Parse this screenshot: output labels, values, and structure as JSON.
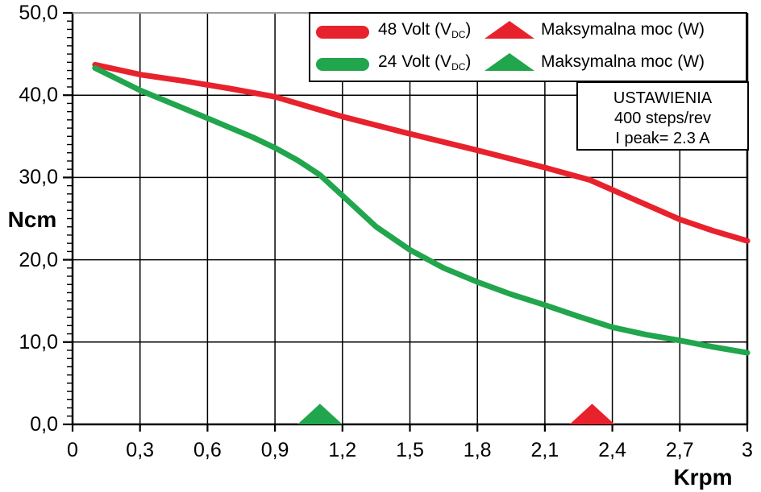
{
  "chart_data": {
    "type": "line",
    "title": "",
    "xlabel": "Krpm",
    "ylabel": "Ncm",
    "xlim": [
      0,
      3
    ],
    "ylim": [
      0,
      50
    ],
    "grid": true,
    "legend_position": "top",
    "x_ticks": [
      {
        "v": 0,
        "label": "0"
      },
      {
        "v": 0.3,
        "label": "0,3"
      },
      {
        "v": 0.6,
        "label": "0,6"
      },
      {
        "v": 0.9,
        "label": "0,9"
      },
      {
        "v": 1.2,
        "label": "1,2"
      },
      {
        "v": 1.5,
        "label": "1,5"
      },
      {
        "v": 1.8,
        "label": "1,8"
      },
      {
        "v": 2.1,
        "label": "2,1"
      },
      {
        "v": 2.4,
        "label": "2,4"
      },
      {
        "v": 2.7,
        "label": "2,7"
      },
      {
        "v": 3,
        "label": "3"
      }
    ],
    "y_ticks": [
      {
        "v": 0,
        "label": "0,0"
      },
      {
        "v": 10,
        "label": "10,0"
      },
      {
        "v": 20,
        "label": "20,0"
      },
      {
        "v": 30,
        "label": "30,0"
      },
      {
        "v": 40,
        "label": "40,0"
      },
      {
        "v": 50,
        "label": "50,0"
      }
    ],
    "y_minor_step": 1,
    "series": [
      {
        "name": "48 Volt (VDC)",
        "color": "#e8222d",
        "points": [
          [
            0.1,
            43.7
          ],
          [
            0.3,
            42.5
          ],
          [
            0.5,
            41.7
          ],
          [
            0.7,
            40.8
          ],
          [
            0.9,
            39.8
          ],
          [
            1.2,
            37.4
          ],
          [
            1.5,
            35.3
          ],
          [
            1.8,
            33.3
          ],
          [
            2.1,
            31.2
          ],
          [
            2.3,
            29.7
          ],
          [
            2.45,
            27.9
          ],
          [
            2.7,
            24.9
          ],
          [
            2.85,
            23.5
          ],
          [
            3.0,
            22.3
          ]
        ]
      },
      {
        "name": "24 Volt (VDC)",
        "color": "#21a54d",
        "points": [
          [
            0.1,
            43.3
          ],
          [
            0.3,
            40.6
          ],
          [
            0.6,
            37.2
          ],
          [
            0.8,
            34.9
          ],
          [
            0.9,
            33.6
          ],
          [
            1.0,
            32.1
          ],
          [
            1.1,
            30.3
          ],
          [
            1.2,
            27.8
          ],
          [
            1.35,
            24.0
          ],
          [
            1.5,
            21.2
          ],
          [
            1.65,
            19.0
          ],
          [
            1.8,
            17.3
          ],
          [
            1.95,
            15.8
          ],
          [
            2.1,
            14.5
          ],
          [
            2.25,
            13.1
          ],
          [
            2.4,
            11.8
          ],
          [
            2.55,
            10.9
          ],
          [
            2.7,
            10.2
          ],
          [
            2.85,
            9.4
          ],
          [
            3.0,
            8.7
          ]
        ]
      }
    ],
    "markers": [
      {
        "name": "max-power-48v",
        "label": "Maksymalna moc (W)",
        "color": "#e8222d",
        "x": 2.31,
        "apex_ncm": 2.5,
        "half_width_krpm": 0.1
      },
      {
        "name": "max-power-24v",
        "label": "Maksymalna moc (W)",
        "color": "#21a54d",
        "x": 1.1,
        "apex_ncm": 2.5,
        "half_width_krpm": 0.1
      }
    ]
  },
  "legend": {
    "rows": [
      {
        "volt_main": "48 Volt (V",
        "volt_sub": "DC",
        "volt_close": ")",
        "marker_label": "Maksymalna moc (W)",
        "color": "#e8222d"
      },
      {
        "volt_main": "24 Volt (V",
        "volt_sub": "DC",
        "volt_close": ")",
        "marker_label": "Maksymalna moc (W)",
        "color": "#21a54d"
      }
    ]
  },
  "settings_box": {
    "line1": "USTAWIENIA",
    "line2": "400 steps/rev",
    "line3": "I peak= 2.3 A"
  }
}
